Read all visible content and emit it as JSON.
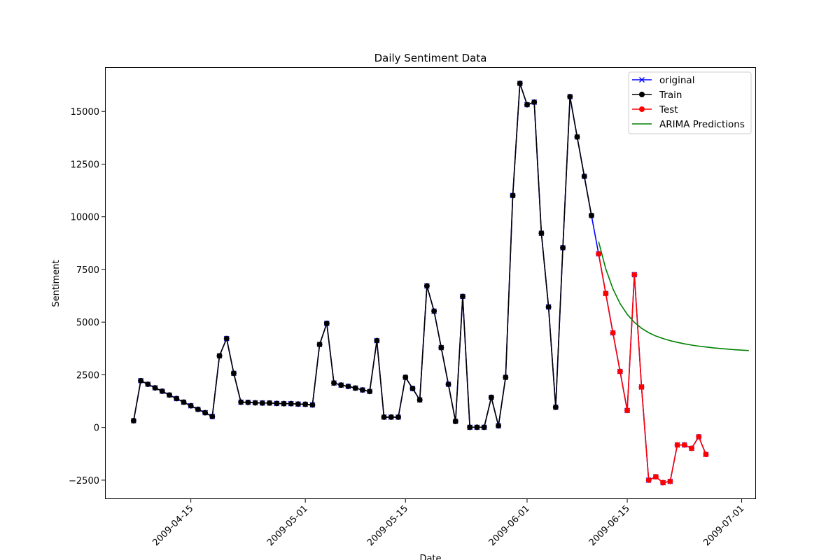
{
  "chart_data": {
    "type": "line",
    "title": "Daily Sentiment Data",
    "xlabel": "Date",
    "ylabel": "Sentiment",
    "ylim": [
      -3400,
      17100
    ],
    "xlim": [
      "2009-04-03",
      "2009-07-03"
    ],
    "grid": false,
    "legend_position": "top-right",
    "y_ticks": [
      -2500,
      0,
      2500,
      5000,
      7500,
      10000,
      12500,
      15000
    ],
    "y_tick_labels": [
      "−2500",
      "0",
      "2500",
      "5000",
      "7500",
      "10000",
      "12500",
      "15000"
    ],
    "x_ticks": [
      "2009-04-15",
      "2009-05-01",
      "2009-05-15",
      "2009-06-01",
      "2009-06-15",
      "2009-07-01"
    ],
    "x_tick_labels": [
      "2009-04-15",
      "2009-05-01",
      "2009-05-15",
      "2009-06-01",
      "2009-06-15",
      "2009-07-01"
    ],
    "series": [
      {
        "name": "original",
        "color": "#0000ff",
        "marker": "x",
        "points": [
          [
            "2009-04-07",
            320
          ],
          [
            "2009-04-08",
            2220
          ],
          [
            "2009-04-09",
            2050
          ],
          [
            "2009-04-10",
            1880
          ],
          [
            "2009-04-11",
            1720
          ],
          [
            "2009-04-12",
            1540
          ],
          [
            "2009-04-13",
            1370
          ],
          [
            "2009-04-14",
            1200
          ],
          [
            "2009-04-15",
            1030
          ],
          [
            "2009-04-16",
            860
          ],
          [
            "2009-04-17",
            700
          ],
          [
            "2009-04-18",
            520
          ],
          [
            "2009-04-19",
            3400
          ],
          [
            "2009-04-20",
            4220
          ],
          [
            "2009-04-21",
            2570
          ],
          [
            "2009-04-22",
            1200
          ],
          [
            "2009-04-23",
            1190
          ],
          [
            "2009-04-24",
            1170
          ],
          [
            "2009-04-25",
            1160
          ],
          [
            "2009-04-26",
            1160
          ],
          [
            "2009-04-27",
            1140
          ],
          [
            "2009-04-28",
            1130
          ],
          [
            "2009-04-29",
            1130
          ],
          [
            "2009-04-30",
            1110
          ],
          [
            "2009-05-01",
            1100
          ],
          [
            "2009-05-02",
            1070
          ],
          [
            "2009-05-03",
            3940
          ],
          [
            "2009-05-04",
            4940
          ],
          [
            "2009-05-05",
            2110
          ],
          [
            "2009-05-06",
            2010
          ],
          [
            "2009-05-07",
            1950
          ],
          [
            "2009-05-08",
            1870
          ],
          [
            "2009-05-09",
            1780
          ],
          [
            "2009-05-10",
            1710
          ],
          [
            "2009-05-11",
            4120
          ],
          [
            "2009-05-12",
            490
          ],
          [
            "2009-05-13",
            490
          ],
          [
            "2009-05-14",
            490
          ],
          [
            "2009-05-15",
            2380
          ],
          [
            "2009-05-16",
            1850
          ],
          [
            "2009-05-17",
            1310
          ],
          [
            "2009-05-18",
            6720
          ],
          [
            "2009-05-19",
            5520
          ],
          [
            "2009-05-20",
            3790
          ],
          [
            "2009-05-21",
            2050
          ],
          [
            "2009-05-22",
            290
          ],
          [
            "2009-05-23",
            6220
          ],
          [
            "2009-05-24",
            10
          ],
          [
            "2009-05-25",
            10
          ],
          [
            "2009-05-26",
            10
          ],
          [
            "2009-05-27",
            1430
          ],
          [
            "2009-05-28",
            80
          ],
          [
            "2009-05-29",
            2380
          ],
          [
            "2009-05-30",
            11010
          ],
          [
            "2009-05-31",
            16330
          ],
          [
            "2009-06-01",
            15320
          ],
          [
            "2009-06-02",
            15440
          ],
          [
            "2009-06-03",
            9220
          ],
          [
            "2009-06-04",
            5720
          ],
          [
            "2009-06-05",
            960
          ],
          [
            "2009-06-06",
            8530
          ],
          [
            "2009-06-07",
            15700
          ],
          [
            "2009-06-08",
            13790
          ],
          [
            "2009-06-09",
            11920
          ],
          [
            "2009-06-10",
            10060
          ],
          [
            "2009-06-11",
            8240
          ],
          [
            "2009-06-12",
            6360
          ],
          [
            "2009-06-13",
            4490
          ],
          [
            "2009-06-14",
            2660
          ],
          [
            "2009-06-15",
            810
          ],
          [
            "2009-06-16",
            7250
          ],
          [
            "2009-06-17",
            1920
          ],
          [
            "2009-06-18",
            -2500
          ],
          [
            "2009-06-19",
            -2340
          ],
          [
            "2009-06-20",
            -2620
          ],
          [
            "2009-06-21",
            -2560
          ],
          [
            "2009-06-22",
            -830
          ],
          [
            "2009-06-23",
            -830
          ],
          [
            "2009-06-24",
            -990
          ],
          [
            "2009-06-25",
            -440
          ],
          [
            "2009-06-26",
            -1280
          ]
        ]
      },
      {
        "name": "Train",
        "color": "#000000",
        "marker": "o",
        "points": [
          [
            "2009-04-07",
            320
          ],
          [
            "2009-04-08",
            2220
          ],
          [
            "2009-04-09",
            2050
          ],
          [
            "2009-04-10",
            1880
          ],
          [
            "2009-04-11",
            1720
          ],
          [
            "2009-04-12",
            1540
          ],
          [
            "2009-04-13",
            1370
          ],
          [
            "2009-04-14",
            1200
          ],
          [
            "2009-04-15",
            1030
          ],
          [
            "2009-04-16",
            860
          ],
          [
            "2009-04-17",
            700
          ],
          [
            "2009-04-18",
            520
          ],
          [
            "2009-04-19",
            3400
          ],
          [
            "2009-04-20",
            4220
          ],
          [
            "2009-04-21",
            2570
          ],
          [
            "2009-04-22",
            1200
          ],
          [
            "2009-04-23",
            1190
          ],
          [
            "2009-04-24",
            1170
          ],
          [
            "2009-04-25",
            1160
          ],
          [
            "2009-04-26",
            1160
          ],
          [
            "2009-04-27",
            1140
          ],
          [
            "2009-04-28",
            1130
          ],
          [
            "2009-04-29",
            1130
          ],
          [
            "2009-04-30",
            1110
          ],
          [
            "2009-05-01",
            1100
          ],
          [
            "2009-05-02",
            1070
          ],
          [
            "2009-05-03",
            3940
          ],
          [
            "2009-05-04",
            4940
          ],
          [
            "2009-05-05",
            2110
          ],
          [
            "2009-05-06",
            2010
          ],
          [
            "2009-05-07",
            1950
          ],
          [
            "2009-05-08",
            1870
          ],
          [
            "2009-05-09",
            1780
          ],
          [
            "2009-05-10",
            1710
          ],
          [
            "2009-05-11",
            4120
          ],
          [
            "2009-05-12",
            490
          ],
          [
            "2009-05-13",
            490
          ],
          [
            "2009-05-14",
            490
          ],
          [
            "2009-05-15",
            2380
          ],
          [
            "2009-05-16",
            1850
          ],
          [
            "2009-05-17",
            1310
          ],
          [
            "2009-05-18",
            6720
          ],
          [
            "2009-05-19",
            5520
          ],
          [
            "2009-05-20",
            3790
          ],
          [
            "2009-05-21",
            2050
          ],
          [
            "2009-05-22",
            290
          ],
          [
            "2009-05-23",
            6220
          ],
          [
            "2009-05-24",
            10
          ],
          [
            "2009-05-25",
            10
          ],
          [
            "2009-05-26",
            10
          ],
          [
            "2009-05-27",
            1430
          ],
          [
            "2009-05-28",
            80
          ],
          [
            "2009-05-29",
            2380
          ],
          [
            "2009-05-30",
            11010
          ],
          [
            "2009-05-31",
            16330
          ],
          [
            "2009-06-01",
            15320
          ],
          [
            "2009-06-02",
            15440
          ],
          [
            "2009-06-03",
            9220
          ],
          [
            "2009-06-04",
            5720
          ],
          [
            "2009-06-05",
            960
          ],
          [
            "2009-06-06",
            8530
          ],
          [
            "2009-06-07",
            15700
          ],
          [
            "2009-06-08",
            13790
          ],
          [
            "2009-06-09",
            11920
          ],
          [
            "2009-06-10",
            10060
          ]
        ]
      },
      {
        "name": "Test",
        "color": "#ff0000",
        "marker": "o",
        "points": [
          [
            "2009-06-11",
            8240
          ],
          [
            "2009-06-12",
            6360
          ],
          [
            "2009-06-13",
            4490
          ],
          [
            "2009-06-14",
            2660
          ],
          [
            "2009-06-15",
            810
          ],
          [
            "2009-06-16",
            7250
          ],
          [
            "2009-06-17",
            1920
          ],
          [
            "2009-06-18",
            -2500
          ],
          [
            "2009-06-19",
            -2340
          ],
          [
            "2009-06-20",
            -2620
          ],
          [
            "2009-06-21",
            -2560
          ],
          [
            "2009-06-22",
            -830
          ],
          [
            "2009-06-23",
            -830
          ],
          [
            "2009-06-24",
            -990
          ],
          [
            "2009-06-25",
            -440
          ],
          [
            "2009-06-26",
            -1280
          ]
        ]
      },
      {
        "name": "ARIMA Predictions",
        "color": "#008000",
        "marker": "none",
        "points": [
          [
            "2009-06-11",
            8820
          ],
          [
            "2009-06-12",
            7530
          ],
          [
            "2009-06-13",
            6580
          ],
          [
            "2009-06-14",
            5880
          ],
          [
            "2009-06-15",
            5370
          ],
          [
            "2009-06-16",
            4990
          ],
          [
            "2009-06-17",
            4710
          ],
          [
            "2009-06-18",
            4500
          ],
          [
            "2009-06-19",
            4340
          ],
          [
            "2009-06-20",
            4220
          ],
          [
            "2009-06-21",
            4120
          ],
          [
            "2009-06-22",
            4040
          ],
          [
            "2009-06-23",
            3970
          ],
          [
            "2009-06-24",
            3910
          ],
          [
            "2009-06-25",
            3860
          ],
          [
            "2009-06-26",
            3820
          ],
          [
            "2009-06-27",
            3780
          ],
          [
            "2009-06-28",
            3750
          ],
          [
            "2009-06-29",
            3720
          ],
          [
            "2009-06-30",
            3690
          ],
          [
            "2009-07-01",
            3670
          ],
          [
            "2009-07-02",
            3650
          ]
        ]
      }
    ]
  }
}
